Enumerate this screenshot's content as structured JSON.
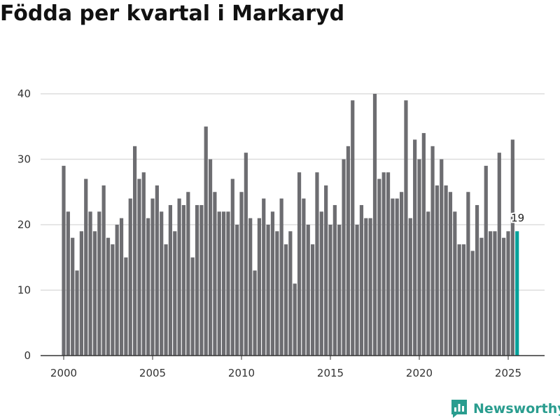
{
  "title": "Födda per kvartal i Markaryd",
  "brand": {
    "name": "Newsworthy",
    "icon": "newsworthy-logo-icon"
  },
  "colors": {
    "bar": "#6d6d71",
    "highlight": "#00a19a",
    "grid": "#dddddd",
    "axis": "#333333"
  },
  "chart_data": {
    "type": "bar",
    "title": "Födda per kvartal i Markaryd",
    "xlabel": "",
    "ylabel": "",
    "ylim": [
      0,
      40
    ],
    "yticks": [
      0,
      10,
      20,
      30,
      40
    ],
    "xticks": [
      "2000",
      "2005",
      "2010",
      "2015",
      "2020",
      "2025"
    ],
    "start": "2000 Q1",
    "categories": [
      "2000 Q1",
      "2000 Q2",
      "2000 Q3",
      "2000 Q4",
      "2001 Q1",
      "2001 Q2",
      "2001 Q3",
      "2001 Q4",
      "2002 Q1",
      "2002 Q2",
      "2002 Q3",
      "2002 Q4",
      "2003 Q1",
      "2003 Q2",
      "2003 Q3",
      "2003 Q4",
      "2004 Q1",
      "2004 Q2",
      "2004 Q3",
      "2004 Q4",
      "2005 Q1",
      "2005 Q2",
      "2005 Q3",
      "2005 Q4",
      "2006 Q1",
      "2006 Q2",
      "2006 Q3",
      "2006 Q4",
      "2007 Q1",
      "2007 Q2",
      "2007 Q3",
      "2007 Q4",
      "2008 Q1",
      "2008 Q2",
      "2008 Q3",
      "2008 Q4",
      "2009 Q1",
      "2009 Q2",
      "2009 Q3",
      "2009 Q4",
      "2010 Q1",
      "2010 Q2",
      "2010 Q3",
      "2010 Q4",
      "2011 Q1",
      "2011 Q2",
      "2011 Q3",
      "2011 Q4",
      "2012 Q1",
      "2012 Q2",
      "2012 Q3",
      "2012 Q4",
      "2013 Q1",
      "2013 Q2",
      "2013 Q3",
      "2013 Q4",
      "2014 Q1",
      "2014 Q2",
      "2014 Q3",
      "2014 Q4",
      "2015 Q1",
      "2015 Q2",
      "2015 Q3",
      "2015 Q4",
      "2016 Q1",
      "2016 Q2",
      "2016 Q3",
      "2016 Q4",
      "2017 Q1",
      "2017 Q2",
      "2017 Q3",
      "2017 Q4",
      "2018 Q1",
      "2018 Q2",
      "2018 Q3",
      "2018 Q4",
      "2019 Q1",
      "2019 Q2",
      "2019 Q3",
      "2019 Q4",
      "2020 Q1",
      "2020 Q2",
      "2020 Q3",
      "2020 Q4",
      "2021 Q1",
      "2021 Q2",
      "2021 Q3",
      "2021 Q4",
      "2022 Q1",
      "2022 Q2",
      "2022 Q3",
      "2022 Q4",
      "2023 Q1",
      "2023 Q2",
      "2023 Q3",
      "2023 Q4",
      "2024 Q1",
      "2024 Q2",
      "2024 Q3",
      "2024 Q4",
      "2025 Q1",
      "2025 Q2",
      "2025 Q3"
    ],
    "values": [
      29,
      22,
      18,
      13,
      19,
      27,
      22,
      19,
      22,
      26,
      18,
      17,
      20,
      21,
      15,
      24,
      32,
      27,
      28,
      21,
      24,
      26,
      22,
      17,
      23,
      19,
      24,
      23,
      25,
      15,
      23,
      23,
      35,
      30,
      25,
      22,
      22,
      22,
      27,
      20,
      25,
      31,
      21,
      13,
      21,
      24,
      20,
      22,
      19,
      24,
      17,
      19,
      11,
      28,
      24,
      20,
      17,
      28,
      22,
      26,
      20,
      23,
      20,
      30,
      32,
      39,
      20,
      23,
      21,
      21,
      40,
      27,
      28,
      28,
      24,
      24,
      25,
      39,
      21,
      33,
      30,
      34,
      22,
      32,
      26,
      30,
      26,
      25,
      22,
      17,
      17,
      25,
      16,
      23,
      18,
      29,
      19,
      19,
      31,
      18,
      19,
      33,
      19
    ],
    "highlight_index": 102,
    "highlight_label": "19"
  }
}
